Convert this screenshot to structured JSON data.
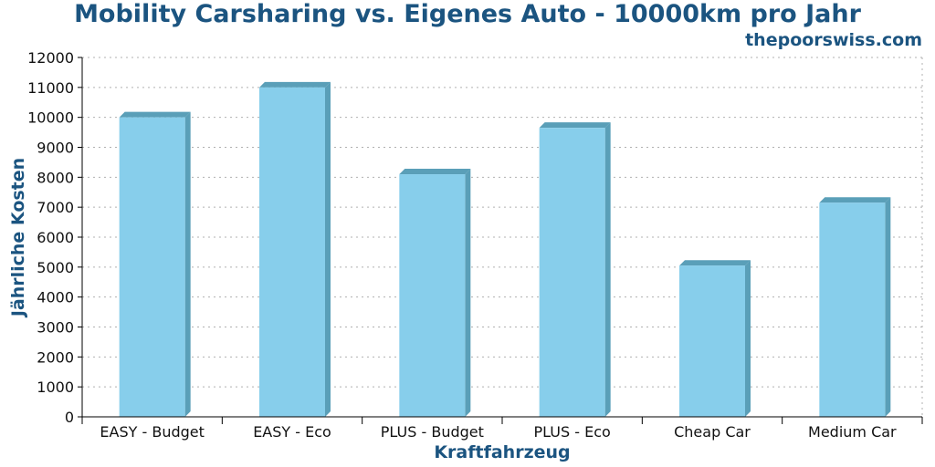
{
  "chart_data": {
    "type": "bar",
    "title": "Mobility Carsharing vs. Eigenes Auto - 10000km pro Jahr",
    "subtitle": "thepoorswiss.com",
    "xlabel": "Kraftfahrzeug",
    "ylabel": "Jährliche Kosten",
    "categories": [
      "EASY - Budget",
      "EASY - Eco",
      "PLUS - Budget",
      "PLUS - Eco",
      "Cheap Car",
      "Medium Car"
    ],
    "values": [
      10000,
      11000,
      8100,
      9650,
      5050,
      7150
    ],
    "ylim": [
      0,
      12000
    ],
    "yticks": [
      0,
      1000,
      2000,
      3000,
      4000,
      5000,
      6000,
      7000,
      8000,
      9000,
      10000,
      11000,
      12000
    ],
    "grid": true,
    "colors": {
      "bar_front": "#87ceeb",
      "bar_side": "#5a9fb8",
      "title": "#1b5480"
    }
  }
}
